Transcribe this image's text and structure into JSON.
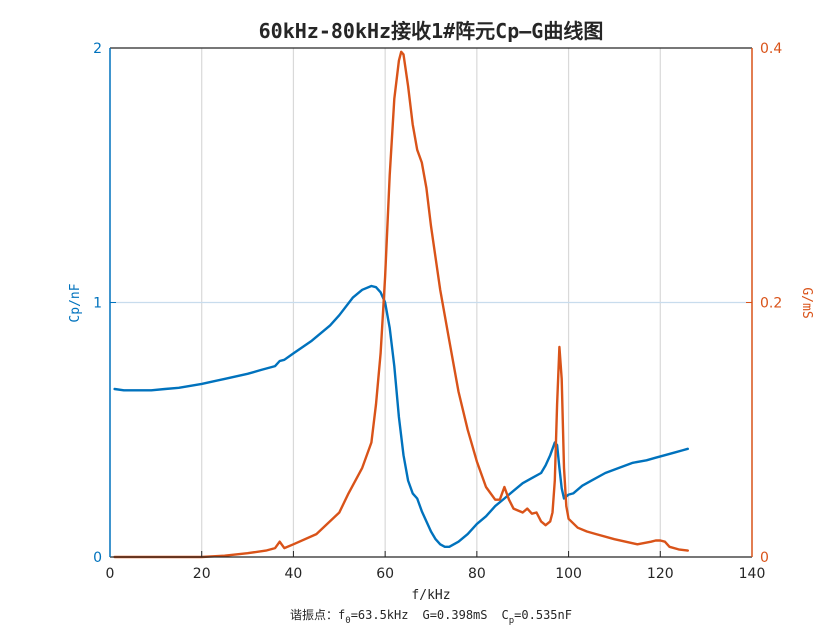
{
  "chart_data": {
    "type": "line",
    "title": "60kHz-80kHz接收1#阵元Cp—G曲线图",
    "xlabel": "f/kHz",
    "xlim": [
      0,
      140
    ],
    "xticks": [
      "0",
      "20",
      "40",
      "60",
      "80",
      "100",
      "120",
      "140"
    ],
    "grid": true,
    "colors": {
      "left": "#0072bd",
      "right": "#d95319",
      "axis": "#262626",
      "grid": "#d9d9d9"
    },
    "left_axis": {
      "label": "Cp/nF",
      "ylim": [
        0,
        2
      ],
      "ticks": [
        "0",
        "1",
        "2"
      ]
    },
    "right_axis": {
      "label": "G/mS",
      "ylim": [
        0,
        0.4
      ],
      "ticks": [
        "0",
        "0.2",
        "0.4"
      ]
    },
    "series": [
      {
        "axis": "left",
        "x": [
          1,
          3,
          6,
          9,
          12,
          15,
          20,
          25,
          30,
          33,
          36,
          37,
          38,
          40,
          44,
          48,
          50,
          53,
          55,
          57,
          58,
          59,
          60,
          61,
          62,
          63,
          64,
          65,
          66,
          67,
          68,
          69,
          70,
          71,
          72,
          73,
          74,
          76,
          78,
          80,
          82,
          84,
          86,
          88,
          90,
          92,
          94,
          95,
          96,
          97,
          97.5,
          98,
          98.5,
          99,
          100,
          101,
          103,
          105,
          108,
          111,
          114,
          117,
          119,
          121,
          123,
          125,
          126
        ],
        "values": [
          0.66,
          0.655,
          0.655,
          0.655,
          0.66,
          0.665,
          0.68,
          0.7,
          0.72,
          0.735,
          0.75,
          0.77,
          0.775,
          0.8,
          0.85,
          0.91,
          0.95,
          1.02,
          1.05,
          1.065,
          1.06,
          1.04,
          1.0,
          0.9,
          0.75,
          0.55,
          0.4,
          0.3,
          0.25,
          0.23,
          0.18,
          0.14,
          0.1,
          0.07,
          0.05,
          0.04,
          0.04,
          0.06,
          0.09,
          0.13,
          0.16,
          0.2,
          0.23,
          0.26,
          0.29,
          0.31,
          0.33,
          0.36,
          0.4,
          0.45,
          0.44,
          0.35,
          0.27,
          0.23,
          0.245,
          0.25,
          0.28,
          0.3,
          0.33,
          0.35,
          0.37,
          0.38,
          0.39,
          0.4,
          0.41,
          0.42,
          0.425
        ]
      },
      {
        "axis": "right",
        "x": [
          1,
          10,
          20,
          25,
          30,
          34,
          36,
          37,
          38,
          40,
          45,
          50,
          52,
          55,
          57,
          58,
          59,
          60,
          61,
          62,
          63,
          63.5,
          64,
          65,
          66,
          67,
          68,
          69,
          70,
          72,
          74,
          76,
          78,
          80,
          82,
          84,
          85,
          86,
          87,
          88,
          90,
          91,
          92,
          93,
          94,
          95,
          96,
          96.5,
          97,
          97.5,
          98,
          98.5,
          99,
          99.5,
          100,
          102,
          104,
          106,
          110,
          115,
          118,
          119,
          120,
          121,
          122,
          124,
          126
        ],
        "values": [
          0.0,
          0.0,
          0.0,
          0.001,
          0.003,
          0.005,
          0.007,
          0.012,
          0.007,
          0.01,
          0.018,
          0.035,
          0.05,
          0.07,
          0.09,
          0.12,
          0.16,
          0.22,
          0.3,
          0.36,
          0.39,
          0.397,
          0.395,
          0.37,
          0.34,
          0.32,
          0.31,
          0.29,
          0.26,
          0.21,
          0.17,
          0.13,
          0.1,
          0.075,
          0.055,
          0.045,
          0.045,
          0.055,
          0.045,
          0.038,
          0.035,
          0.038,
          0.034,
          0.035,
          0.028,
          0.025,
          0.028,
          0.035,
          0.06,
          0.12,
          0.165,
          0.14,
          0.07,
          0.04,
          0.03,
          0.023,
          0.02,
          0.018,
          0.014,
          0.01,
          0.012,
          0.013,
          0.013,
          0.012,
          0.008,
          0.006,
          0.005
        ]
      }
    ],
    "caption": {
      "prefix": "谐振点：",
      "f_sym": "f",
      "f_sub": "0",
      "f_val": "=63.5kHz",
      "g_text": "G=0.398mS",
      "c_sym": "C",
      "c_sub": "p",
      "c_val": "=0.535nF"
    }
  }
}
